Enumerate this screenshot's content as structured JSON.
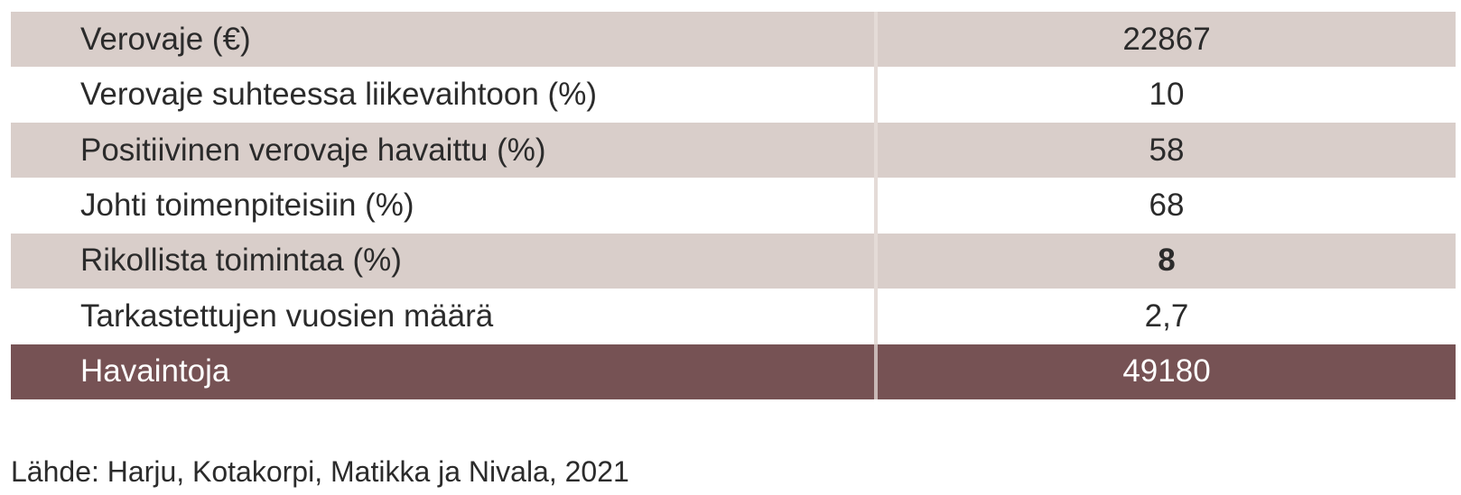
{
  "table": {
    "rows": [
      {
        "label": "Verovaje (€)",
        "value": "22867"
      },
      {
        "label": "Verovaje suhteessa liikevaihtoon (%)",
        "value": "10"
      },
      {
        "label": "Positiivinen verovaje havaittu (%)",
        "value": "58"
      },
      {
        "label": "Johti toimenpiteisiin (%)",
        "value": "68"
      },
      {
        "label": "Rikollista toimintaa (%)",
        "value": "8"
      },
      {
        "label": "Tarkastettujen vuosien määrä",
        "value": "2,7"
      }
    ],
    "total": {
      "label": "Havaintoja",
      "value": "49180"
    }
  },
  "source": "Lähde: Harju, Kotakorpi, Matikka ja Nivala, 2021",
  "colors": {
    "shaded_row": "#d9ceca",
    "total_row": "#765254",
    "text": "#2b2b2b"
  }
}
